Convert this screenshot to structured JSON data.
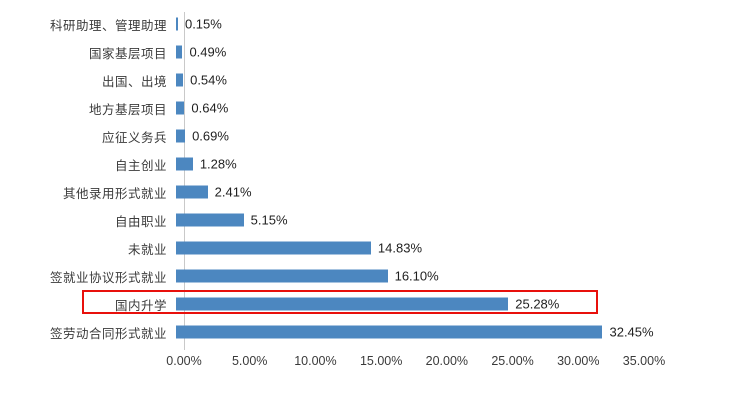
{
  "chart_data": {
    "type": "bar",
    "orientation": "horizontal",
    "title": "",
    "categories": [
      "科研助理、管理助理",
      "国家基层项目",
      "出国、出境",
      "地方基层项目",
      "应征义务兵",
      "自主创业",
      "其他录用形式就业",
      "自由职业",
      "未就业",
      "签就业协议形式就业",
      "国内升学",
      "签劳动合同形式就业"
    ],
    "values": [
      0.15,
      0.49,
      0.54,
      0.64,
      0.69,
      1.28,
      2.41,
      5.15,
      14.83,
      16.1,
      25.28,
      32.45
    ],
    "value_labels": [
      "0.15%",
      "0.49%",
      "0.54%",
      "0.64%",
      "0.69%",
      "1.28%",
      "2.41%",
      "5.15%",
      "14.83%",
      "16.10%",
      "25.28%",
      "32.45%"
    ],
    "x_ticks": [
      "0.00%",
      "5.00%",
      "10.00%",
      "15.00%",
      "20.00%",
      "25.00%",
      "30.00%",
      "35.00%"
    ],
    "xlim": [
      0,
      35
    ],
    "grid": false,
    "legend": false,
    "bar_color": "#4c87c0",
    "highlight": {
      "category": "国内升学",
      "index": 10,
      "box_color": "#e8100c"
    }
  }
}
